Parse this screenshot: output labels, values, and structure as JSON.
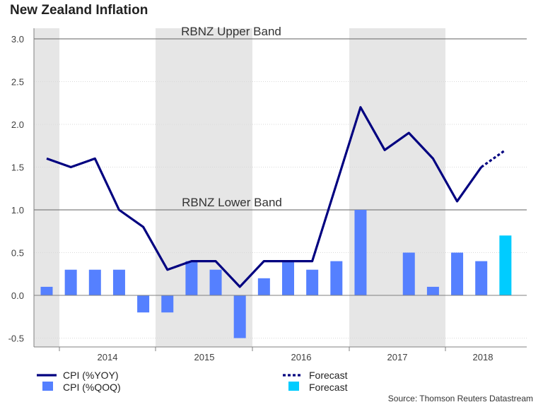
{
  "title": "New Zealand Inflation",
  "source": "Source: Thomson Reuters Datastream",
  "colors": {
    "line": "#000080",
    "bars": "#5580ff",
    "forecast_bar": "#00ccff",
    "shade": "#e6e6e6",
    "band_line": "#808080",
    "grid": "#d9d9d9"
  },
  "chart_data": {
    "type": "bar+line",
    "title": "New Zealand Inflation",
    "xlabel": "",
    "ylabel": "",
    "ylim": [
      -0.6,
      3.0
    ],
    "yticks": [
      "3.0",
      "2.5",
      "2.0",
      "1.5",
      "1.0",
      "0.5",
      "0.0",
      "-0.5"
    ],
    "ytick_values": [
      3.0,
      2.5,
      2.0,
      1.5,
      1.0,
      0.5,
      0.0,
      -0.5
    ],
    "categories": [
      "2013Q4",
      "2014Q1",
      "2014Q2",
      "2014Q3",
      "2014Q4",
      "2015Q1",
      "2015Q2",
      "2015Q3",
      "2015Q4",
      "2016Q1",
      "2016Q2",
      "2016Q3",
      "2016Q4",
      "2017Q1",
      "2017Q2",
      "2017Q3",
      "2017Q4",
      "2018Q1",
      "2018Q2",
      "2018Q3",
      "2018Q4"
    ],
    "year_labels": [
      "2014",
      "2015",
      "2016",
      "2017",
      "2018"
    ],
    "shaded_years": [
      "2013",
      "2015",
      "2017"
    ],
    "series": [
      {
        "name": "CPI (%YOY)",
        "type": "line",
        "values": [
          1.6,
          1.5,
          1.6,
          1.0,
          0.8,
          0.3,
          0.4,
          0.4,
          0.1,
          0.4,
          0.4,
          0.4,
          1.3,
          2.2,
          1.7,
          1.9,
          1.6,
          1.1,
          1.5,
          null,
          null
        ]
      },
      {
        "name": "Forecast",
        "type": "line-dashed",
        "values": [
          null,
          null,
          null,
          null,
          null,
          null,
          null,
          null,
          null,
          null,
          null,
          null,
          null,
          null,
          null,
          null,
          null,
          null,
          1.5,
          1.7,
          null
        ]
      },
      {
        "name": "CPI (%QOQ)",
        "type": "bar",
        "values": [
          0.1,
          0.3,
          0.3,
          0.3,
          -0.2,
          -0.2,
          0.4,
          0.3,
          -0.5,
          0.2,
          0.4,
          0.3,
          0.4,
          1.0,
          0.0,
          0.5,
          0.1,
          0.5,
          0.4,
          null,
          null
        ]
      },
      {
        "name": "Forecast",
        "type": "bar-forecast",
        "values": [
          null,
          null,
          null,
          null,
          null,
          null,
          null,
          null,
          null,
          null,
          null,
          null,
          null,
          null,
          null,
          null,
          null,
          null,
          null,
          0.7,
          null
        ]
      }
    ],
    "reference_lines": [
      {
        "label": "RBNZ Upper Band",
        "value": 3.0
      },
      {
        "label": "RBNZ Lower Band",
        "value": 1.0
      }
    ],
    "legend": {
      "placement": "bottom",
      "items": [
        {
          "label": "CPI (%YOY)",
          "style": "line"
        },
        {
          "label": "Forecast",
          "style": "dotted-line"
        },
        {
          "label": "CPI (%QOQ)",
          "style": "bar"
        },
        {
          "label": "Forecast",
          "style": "bar-forecast"
        }
      ]
    }
  }
}
